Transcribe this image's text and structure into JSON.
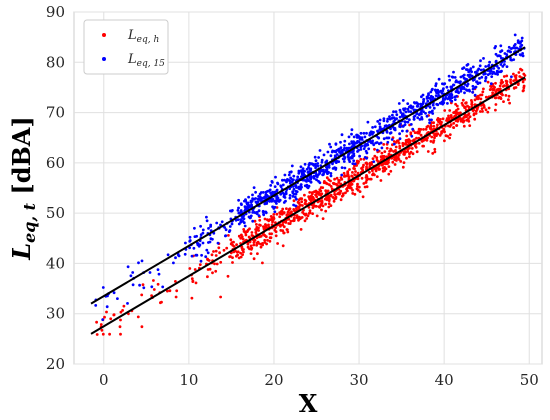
{
  "chart_data": {
    "type": "scatter",
    "title": "",
    "xlabel": "X",
    "ylabel_main": "L",
    "ylabel_sub": "eq, t",
    "ylabel_unit": " [dBA]",
    "xlim": [
      -3.5,
      51.5
    ],
    "ylim": [
      20,
      90
    ],
    "xticks": [
      0,
      10,
      20,
      30,
      40,
      50
    ],
    "yticks": [
      20,
      30,
      40,
      50,
      60,
      70,
      80,
      90
    ],
    "grid": true,
    "legend_position": "top-left",
    "series": [
      {
        "name": "L_eq,h",
        "legend_main": "L",
        "legend_sub": "eq, h",
        "color": "#ff0000",
        "x_range": [
          -1,
          49.5
        ],
        "approx_point_count": 1100,
        "approx_spread_db": 1.5,
        "fit_line": {
          "color": "#000000",
          "x": [
            -1.5,
            49.5
          ],
          "y": [
            26,
            77
          ]
        }
      },
      {
        "name": "L_eq,15",
        "legend_main": "L",
        "legend_sub": "eq, 15",
        "color": "#0000ff",
        "x_range": [
          -1,
          49.5
        ],
        "approx_point_count": 1100,
        "approx_spread_db": 1.5,
        "fit_line": {
          "color": "#000000",
          "x": [
            -1.5,
            49.5
          ],
          "y": [
            32,
            83
          ]
        }
      }
    ]
  }
}
